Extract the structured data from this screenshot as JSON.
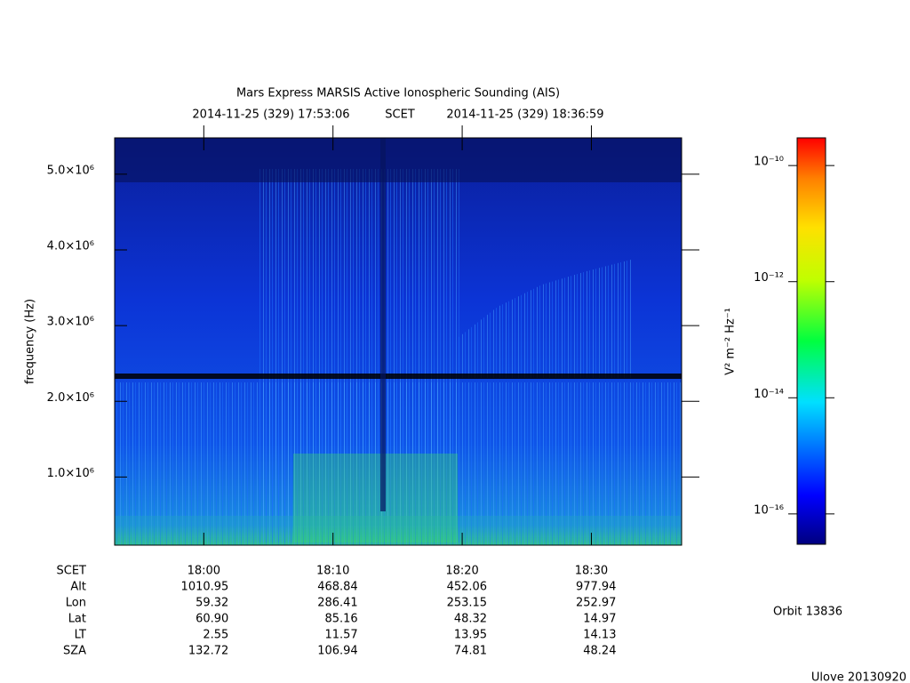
{
  "chart_data": {
    "type": "spectrogram",
    "title": "Mars Express MARSIS Active Ionospheric Sounding (AIS)",
    "start_time": "2014-11-25 (329) 17:53:06",
    "time_system": "SCET",
    "end_time": "2014-11-25 (329) 18:36:59",
    "ylabel": "frequency (Hz)",
    "xlim": [
      "17:53:06",
      "18:36:59"
    ],
    "xticks": [
      "18:00",
      "18:10",
      "18:20",
      "18:30"
    ],
    "ylim": [
      100000,
      5480000
    ],
    "yticks": [
      {
        "value": 1000000,
        "label": "1.0×10⁶"
      },
      {
        "value": 2000000,
        "label": "2.0×10⁶"
      },
      {
        "value": 3000000,
        "label": "3.0×10⁶"
      },
      {
        "value": 4000000,
        "label": "4.0×10⁶"
      },
      {
        "value": 5000000,
        "label": "5.0×10⁶"
      }
    ],
    "ephemeris": [
      {
        "name": "SCET"
      },
      {
        "name": "Alt",
        "values": [
          "1010.95",
          "468.84",
          "452.06",
          "977.94"
        ]
      },
      {
        "name": "Lon",
        "values": [
          "59.32",
          "286.41",
          "253.15",
          "252.97"
        ]
      },
      {
        "name": "Lat",
        "values": [
          "60.90",
          "85.16",
          "48.32",
          "14.97"
        ]
      },
      {
        "name": "LT",
        "values": [
          "2.55",
          "11.57",
          "13.95",
          "14.13"
        ]
      },
      {
        "name": "SZA",
        "values": [
          "132.72",
          "106.94",
          "74.81",
          "48.24"
        ]
      }
    ],
    "colorbar": {
      "label": "V² m⁻² Hz⁻¹",
      "log_scale": true,
      "zlim": [
        3e-17,
        3e-10
      ],
      "zticks": [
        {
          "value": 1e-10,
          "label": "10⁻¹⁰"
        },
        {
          "value": 1e-12,
          "label": "10⁻¹²"
        },
        {
          "value": 1e-14,
          "label": "10⁻¹⁴"
        },
        {
          "value": 1e-16,
          "label": "10⁻¹⁶"
        }
      ]
    },
    "orbit": "Orbit 13836",
    "footer": "Ulove 20130920"
  }
}
